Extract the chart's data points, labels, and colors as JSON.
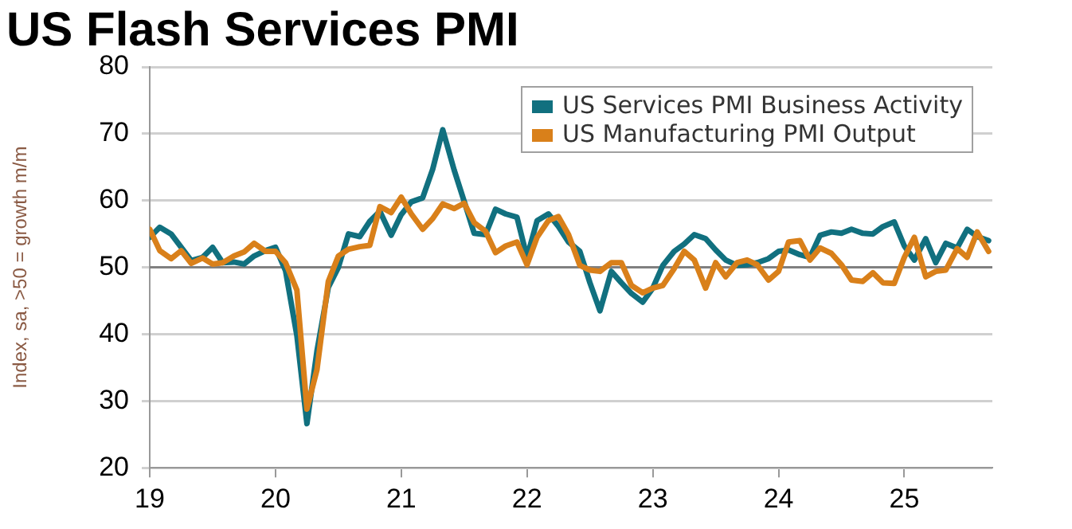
{
  "chart_data": {
    "type": "line",
    "title": "US Flash Services PMI",
    "ylabel": "Index, sa, >50 = growth m/m",
    "x": [
      19,
      19.08,
      19.17,
      19.25,
      19.33,
      19.42,
      19.5,
      19.58,
      19.67,
      19.75,
      19.83,
      19.92,
      20,
      20.08,
      20.17,
      20.25,
      20.33,
      20.42,
      20.5,
      20.58,
      20.67,
      20.75,
      20.83,
      20.92,
      21,
      21.08,
      21.17,
      21.25,
      21.33,
      21.42,
      21.5,
      21.58,
      21.67,
      21.75,
      21.83,
      21.92,
      22,
      22.08,
      22.17,
      22.25,
      22.33,
      22.42,
      22.5,
      22.58,
      22.67,
      22.75,
      22.83,
      22.92,
      23,
      23.08,
      23.17,
      23.25,
      23.33,
      23.42,
      23.5,
      23.58,
      23.67,
      23.75,
      23.83,
      23.92,
      24,
      24.08,
      24.17,
      24.25,
      24.33,
      24.42,
      24.5,
      24.58,
      24.67,
      24.75,
      24.83,
      24.92,
      25,
      25.08,
      25.17,
      25.25,
      25.33,
      25.42,
      25.5,
      25.58,
      25.67
    ],
    "series": [
      {
        "name": "US Services PMI Business Activity",
        "color": "#11707f",
        "values": [
          54.5,
          56,
          55,
          53,
          51,
          51.5,
          53,
          50.7,
          50.8,
          50.5,
          51.7,
          52.5,
          53,
          49.5,
          39.8,
          26.6,
          37.5,
          47,
          50,
          55,
          54.6,
          56.9,
          58.4,
          54.8,
          57.9,
          59.8,
          60.4,
          64.7,
          70.6,
          64.6,
          59.9,
          55.1,
          54.9,
          58.7,
          58,
          57.5,
          51.5,
          57,
          58,
          56.1,
          53.8,
          52.4,
          47.7,
          43.5,
          49.4,
          47.7,
          46.1,
          44.8,
          46.9,
          50.3,
          52.4,
          53.5,
          54.9,
          54.3,
          52.6,
          51.1,
          50.3,
          50.4,
          50.7,
          51.3,
          52.4,
          52.6,
          51.9,
          51.5,
          54.8,
          55.3,
          55.1,
          55.7,
          55.1,
          55,
          56.1,
          56.8,
          53.2,
          51.1,
          54.3,
          50.7,
          53.6,
          52.9,
          55.7,
          54.6,
          54
        ]
      },
      {
        "name": "US Manufacturing PMI Output",
        "color": "#d9801a",
        "values": [
          55.7,
          52.5,
          51.3,
          52.5,
          50.6,
          51.4,
          50.5,
          50.7,
          51.7,
          52.3,
          53.6,
          52.4,
          52.4,
          50.7,
          46.6,
          28.8,
          34.7,
          47.9,
          51.7,
          52.7,
          53.1,
          53.3,
          59.1,
          58.2,
          60.5,
          58,
          55.7,
          57.3,
          59.5,
          58.8,
          59.6,
          56.7,
          55.4,
          52.2,
          53.2,
          53.8,
          50.4,
          54.5,
          57,
          57.6,
          54.9,
          50.3,
          49.6,
          49.4,
          50.7,
          50.7,
          47.3,
          46.2,
          46.9,
          47.3,
          49.8,
          52.4,
          51.1,
          46.9,
          50.7,
          48.6,
          50.7,
          51.1,
          50.4,
          48.1,
          49.4,
          53.8,
          54,
          51.1,
          52.9,
          52.1,
          50.4,
          48.1,
          47.9,
          49.2,
          47.7,
          47.6,
          51.5,
          54.5,
          48.6,
          49.4,
          49.6,
          52.8,
          51.5,
          55.3,
          52.4
        ]
      }
    ],
    "xlim": [
      19,
      25.7
    ],
    "xticks": [
      19,
      20,
      21,
      22,
      23,
      24,
      25
    ],
    "ylim": [
      20,
      80
    ],
    "yticks": [
      20,
      30,
      40,
      50,
      60,
      70,
      80
    ],
    "ref_lines": [
      {
        "axis": "y",
        "value": 50,
        "color": "#808080"
      }
    ],
    "grid": "y",
    "legend": "top right",
    "marker": "none",
    "line_style": "solid"
  }
}
